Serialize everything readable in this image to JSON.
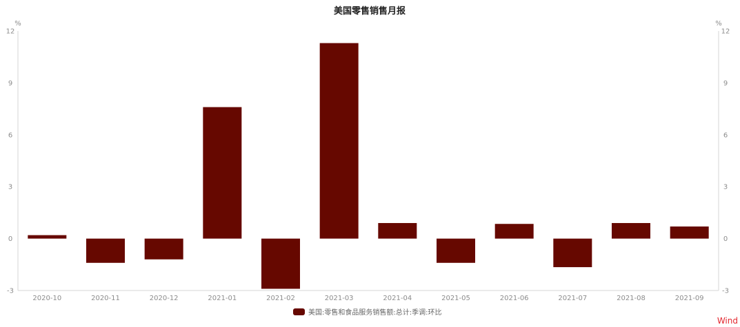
{
  "chart_data": {
    "type": "bar",
    "title": "美国零售销售月报",
    "unit_left": "%",
    "unit_right": "%",
    "categories": [
      "2020-10",
      "2020-11",
      "2020-12",
      "2021-01",
      "2021-02",
      "2021-03",
      "2021-04",
      "2021-05",
      "2021-06",
      "2021-07",
      "2021-08",
      "2021-09"
    ],
    "series": [
      {
        "name": "美国:零售和食品服务销售额:总计:季调:环比",
        "color": "#660800",
        "values": [
          0.2,
          -1.4,
          -1.2,
          7.6,
          -2.9,
          11.3,
          0.9,
          -1.4,
          0.85,
          -1.65,
          0.9,
          0.7
        ]
      }
    ],
    "ylim": [
      -3,
      12
    ],
    "yticks": [
      -3,
      0,
      3,
      6,
      9,
      12
    ],
    "grid": false,
    "legend_position": "bottom-center",
    "dual_y_axis": true
  },
  "watermark": "Wind"
}
